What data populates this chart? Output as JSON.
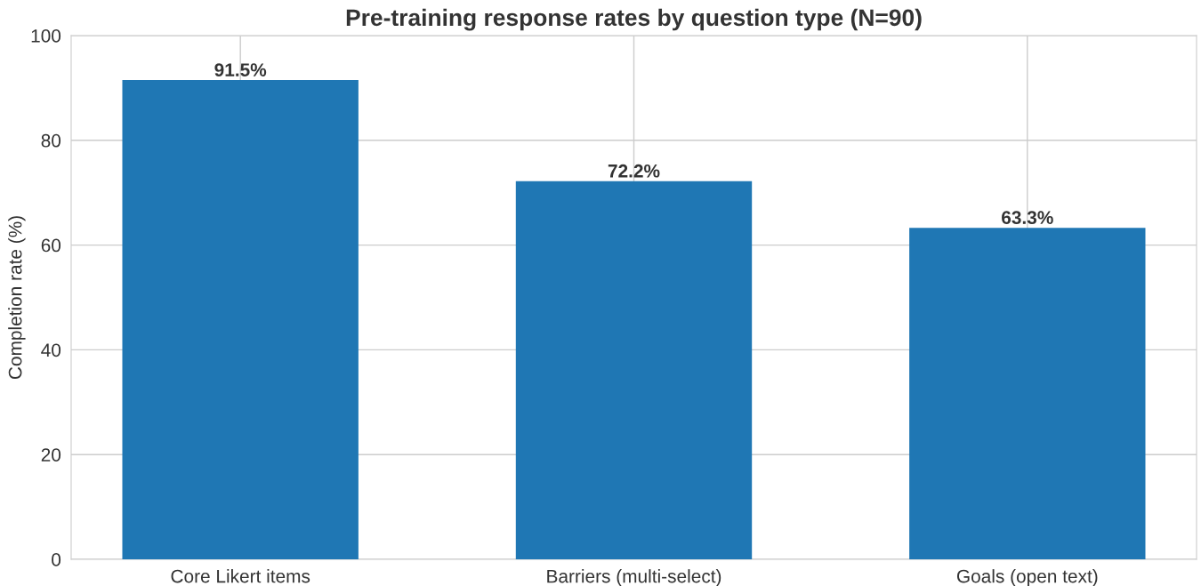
{
  "chart_data": {
    "type": "bar",
    "title": "Pre-training response rates by question type (N=90)",
    "ylabel": "Completion rate (%)",
    "categories": [
      "Core Likert items",
      "Barriers (multi-select)",
      "Goals (open text)"
    ],
    "values": [
      91.5,
      72.2,
      63.3
    ],
    "value_labels": [
      "91.5%",
      "72.2%",
      "63.3%"
    ],
    "color": "#1f77b4",
    "ylim": [
      0,
      100
    ],
    "yticks": [
      0,
      20,
      40,
      60,
      80,
      100
    ],
    "grid": true
  }
}
